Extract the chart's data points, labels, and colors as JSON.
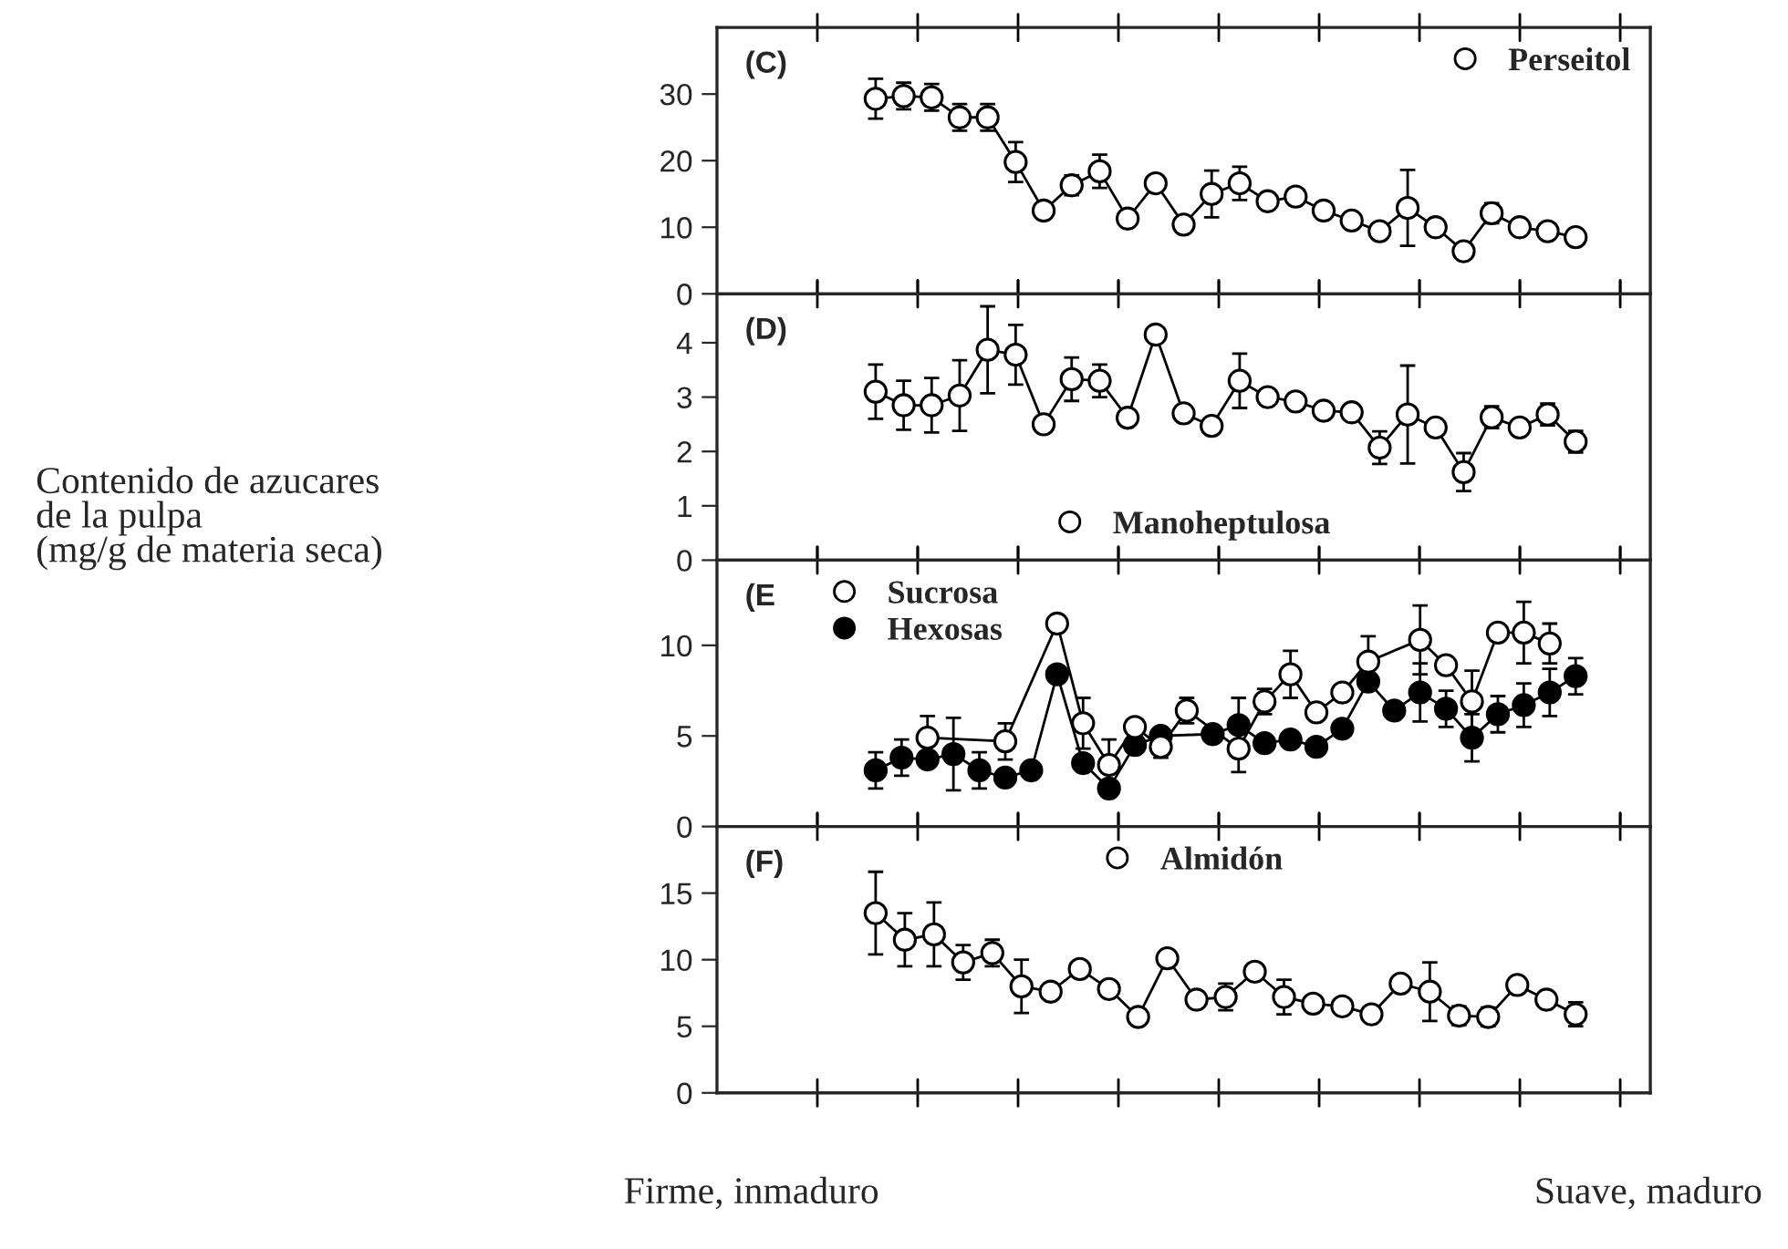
{
  "chart_data": [
    {
      "type": "line",
      "marker": "circle",
      "legend": "top right",
      "tick_labels": "y",
      "annotations": [
        "(C)"
      ],
      "ylim": [
        0,
        40
      ],
      "yticks": [
        0,
        10,
        20,
        30
      ],
      "categories": [
        null,
        null,
        null,
        null,
        null,
        null,
        null,
        null,
        null,
        null,
        null,
        null,
        null,
        null,
        null,
        null,
        null,
        null,
        null,
        null,
        null,
        null,
        null,
        null,
        null,
        null
      ],
      "series": [
        {
          "name": "Perseitol",
          "color": "#ffffff",
          "values": [
            29.3,
            29.7,
            29.5,
            26.5,
            26.5,
            19.8,
            12.5,
            16.3,
            18.4,
            11.3,
            16.6,
            10.4,
            15,
            16.6,
            13.9,
            14.6,
            12.5,
            11,
            9.4,
            12.9,
            10,
            6.4,
            12.1,
            10,
            9.4,
            8.5
          ],
          "errors": [
            3,
            2,
            2,
            2,
            2,
            3,
            null,
            1.5,
            2.5,
            null,
            null,
            null,
            3.5,
            2.5,
            null,
            null,
            null,
            null,
            null,
            5.7,
            null,
            null,
            1.5,
            null,
            null,
            null
          ]
        }
      ]
    },
    {
      "type": "line",
      "marker": "circle",
      "legend": "bottom",
      "tick_labels": "y",
      "ylabel": "Contenido de azucares\nde la pulpa\n(mg/g de materia seca)",
      "annotations": [
        "(D)"
      ],
      "ylim": [
        0,
        4.9
      ],
      "yticks": [
        0,
        1,
        2,
        3,
        4
      ],
      "categories": [
        null,
        null,
        null,
        null,
        null,
        null,
        null,
        null,
        null,
        null,
        null,
        null,
        null,
        null,
        null,
        null,
        null,
        null,
        null,
        null,
        null,
        null,
        null,
        null,
        null,
        null
      ],
      "series": [
        {
          "name": "Manoheptulosa",
          "color": "#ffffff",
          "values": [
            3.1,
            2.85,
            2.85,
            3.03,
            3.87,
            3.78,
            2.5,
            3.33,
            3.3,
            2.62,
            4.15,
            2.7,
            2.47,
            3.3,
            3.0,
            2.92,
            2.75,
            2.72,
            2.07,
            2.68,
            2.44,
            1.62,
            2.63,
            2.44,
            2.68,
            2.18
          ],
          "errors": [
            0.5,
            0.45,
            0.5,
            0.65,
            0.8,
            0.55,
            null,
            0.4,
            0.3,
            null,
            null,
            null,
            null,
            0.5,
            null,
            null,
            null,
            null,
            0.3,
            0.9,
            null,
            0.35,
            0.2,
            null,
            0.2,
            0.2
          ]
        }
      ]
    },
    {
      "type": "line",
      "marker": "circle",
      "legend": "top left",
      "tick_labels": "y",
      "annotations": [
        "(E"
      ],
      "ylim": [
        0,
        14.7
      ],
      "yticks": [
        0,
        5,
        10
      ],
      "categories": [
        null,
        null,
        null,
        null,
        null,
        null,
        null,
        null,
        null,
        null,
        null,
        null,
        null,
        null,
        null,
        null,
        null,
        null,
        null,
        null,
        null,
        null,
        null,
        null,
        null,
        null,
        null,
        null
      ],
      "series": [
        {
          "name": "Sucrosa",
          "color": "#ffffff",
          "values": [
            null,
            null,
            4.9,
            null,
            null,
            4.7,
            null,
            11.2,
            5.7,
            3.4,
            5.5,
            4.4,
            6.4,
            null,
            4.3,
            6.9,
            8.4,
            6.3,
            7.4,
            9.1,
            null,
            10.3,
            8.9,
            6.9,
            10.7,
            10.7,
            10.1,
            null
          ],
          "errors": [
            null,
            null,
            1.2,
            null,
            null,
            1.0,
            null,
            null,
            1.4,
            1.4,
            null,
            0.6,
            0.7,
            null,
            1.3,
            0.7,
            1.3,
            null,
            null,
            1.4,
            null,
            1.9,
            null,
            1.7,
            null,
            1.7,
            1.1,
            null
          ]
        },
        {
          "name": "Hexosas",
          "color": "#000000",
          "values": [
            3.1,
            3.8,
            3.7,
            4.0,
            3.1,
            2.7,
            3.1,
            8.4,
            3.5,
            2.1,
            4.5,
            5.0,
            null,
            5.1,
            5.6,
            4.6,
            4.8,
            4.4,
            5.4,
            8.0,
            6.4,
            7.4,
            6.5,
            4.9,
            6.2,
            6.7,
            7.4,
            8.3
          ],
          "errors": [
            1.0,
            1.0,
            null,
            2.0,
            1.0,
            null,
            null,
            null,
            null,
            null,
            null,
            null,
            null,
            null,
            1.5,
            null,
            null,
            null,
            null,
            null,
            null,
            1.6,
            1.0,
            1.3,
            1.0,
            1.2,
            1.3,
            1.0
          ]
        }
      ]
    },
    {
      "type": "line",
      "marker": "circle",
      "legend": "top",
      "tick_labels": "y",
      "annotations": [
        "(F)",
        "Firme, inmaduro",
        "Suave, maduro"
      ],
      "ylim": [
        0,
        20
      ],
      "yticks": [
        0,
        5,
        10,
        15
      ],
      "categories": [
        null,
        null,
        null,
        null,
        null,
        null,
        null,
        null,
        null,
        null,
        null,
        null,
        null,
        null,
        null,
        null,
        null,
        null,
        null,
        null,
        null,
        null,
        null,
        null,
        null
      ],
      "series": [
        {
          "name": "Almidón",
          "color": "#ffffff",
          "values": [
            13.5,
            11.5,
            11.9,
            9.8,
            10.5,
            8.0,
            7.6,
            9.3,
            7.8,
            5.7,
            10.1,
            7.0,
            7.2,
            9.1,
            7.2,
            6.7,
            6.5,
            5.9,
            8.2,
            7.6,
            5.8,
            5.7,
            8.1,
            7.0,
            5.9
          ],
          "errors": [
            3.1,
            2.0,
            2.4,
            1.3,
            1.0,
            2.0,
            null,
            null,
            null,
            null,
            null,
            null,
            1.0,
            0.6,
            1.3,
            null,
            null,
            null,
            null,
            2.2,
            0.7,
            0.7,
            0.6,
            null,
            0.9
          ]
        }
      ]
    }
  ]
}
